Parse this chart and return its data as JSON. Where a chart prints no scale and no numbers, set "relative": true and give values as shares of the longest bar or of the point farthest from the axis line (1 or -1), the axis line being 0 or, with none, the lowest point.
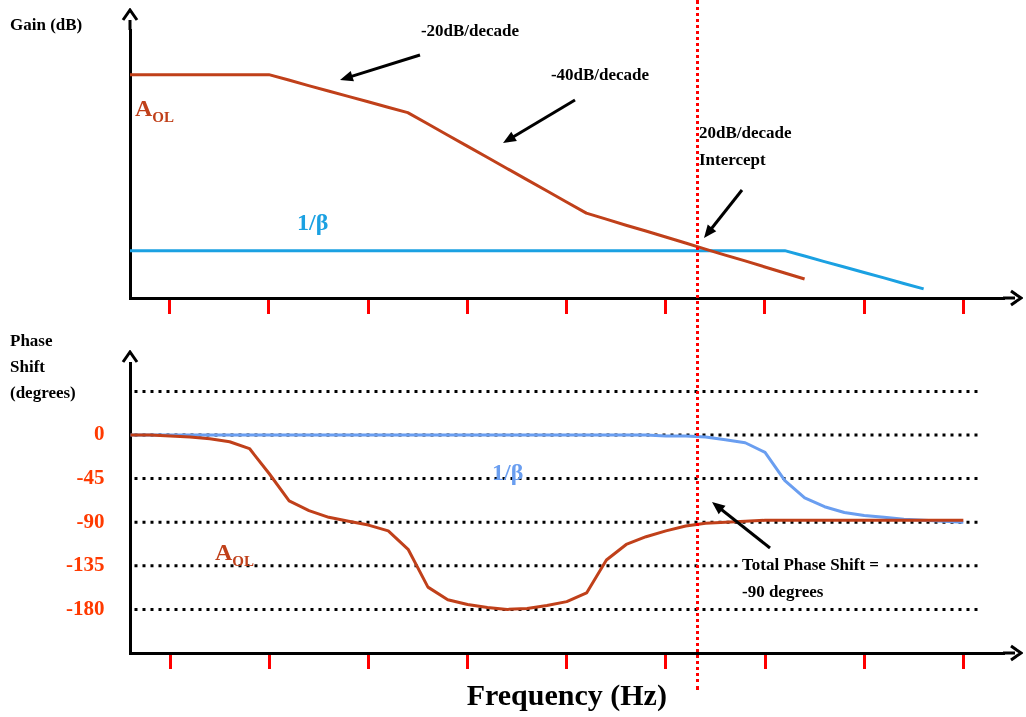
{
  "chart_data": [
    {
      "type": "line",
      "ylabel": "Gain (dB)",
      "relative": true,
      "categories": [
        null,
        null,
        null,
        null,
        null,
        null,
        null,
        null,
        null,
        null,
        null,
        null,
        null,
        null,
        null,
        null,
        null,
        null,
        null,
        null,
        null,
        null,
        null,
        null,
        null,
        null,
        null,
        null,
        null,
        null,
        null,
        null,
        null,
        null,
        null,
        null,
        null,
        null,
        null,
        null,
        null,
        null,
        null,
        null,
        null
      ],
      "tick_labels": false,
      "marker": "none",
      "series": [
        {
          "name": "A$_{OL}$",
          "color": "#c0401a",
          "values": [
            1,
            1,
            1,
            1,
            1,
            1,
            1,
            1,
            0.976,
            0.951,
            0.927,
            0.903,
            0.879,
            0.854,
            0.83,
            0.78,
            0.73,
            0.68,
            0.63,
            0.58,
            0.53,
            0.48,
            0.43,
            0.38,
            0.353,
            0.326,
            0.3,
            0.273,
            0.246,
            0.219,
            0.192,
            0.166,
            0.139,
            0.112,
            0.085,
            null,
            null,
            null,
            null,
            null,
            null,
            null,
            null,
            null,
            null
          ]
        },
        {
          "name": "1/β",
          "color": "#1ba1e2",
          "values": [
            0.212,
            0.212,
            0.212,
            0.212,
            0.212,
            0.212,
            0.212,
            0.212,
            0.212,
            0.212,
            0.212,
            0.212,
            0.212,
            0.212,
            0.212,
            0.212,
            0.212,
            0.212,
            0.212,
            0.212,
            0.212,
            0.212,
            0.212,
            0.212,
            0.212,
            0.212,
            0.212,
            0.212,
            0.212,
            0.212,
            0.212,
            0.212,
            0.212,
            0.212,
            0.188,
            0.163,
            0.139,
            0.114,
            0.09,
            0.065,
            0.041,
            null,
            null,
            null,
            null
          ]
        }
      ],
      "annotations": [
        "-20dB/decade",
        "-40dB/decade",
        "20dB/decade Intercept"
      ]
    },
    {
      "type": "line",
      "ylabel": "Phase Shift (degrees)",
      "xlabel": "Frequency (Hz)",
      "categories": [
        null,
        null,
        null,
        null,
        null,
        null,
        null,
        null,
        null,
        null,
        null,
        null,
        null,
        null,
        null,
        null,
        null,
        null,
        null,
        null,
        null,
        null,
        null,
        null,
        null,
        null,
        null,
        null,
        null,
        null,
        null,
        null,
        null,
        null,
        null,
        null,
        null,
        null,
        null,
        null,
        null,
        null,
        null,
        null,
        null
      ],
      "ylim": [
        -225,
        65
      ],
      "yticks": [
        -180,
        -135,
        -90,
        -45,
        0,
        {
          "value": 45,
          "label": null
        }
      ],
      "tick_labels": "y",
      "grid": "y",
      "marker": "none",
      "series": [
        {
          "name": "A$_{OL}$",
          "color": "#c0401a",
          "values": [
            0,
            0,
            -1,
            -2,
            -4,
            -7,
            -14,
            -40,
            -68,
            -78,
            -85,
            -89,
            -93,
            -99,
            -118,
            -157,
            -170,
            -175,
            -178,
            -180,
            -179,
            -176,
            -172,
            -163,
            -129,
            -113,
            -105,
            -99,
            -94,
            -91,
            -90,
            -89,
            -88,
            -88,
            -88,
            -88,
            -88,
            -88,
            -88,
            -88,
            -88,
            -88,
            -88,
            null,
            null
          ]
        },
        {
          "name": "1/β",
          "color": "#6a9ef0",
          "values": [
            0,
            0,
            0,
            0,
            0,
            0,
            0,
            0,
            0,
            0,
            0,
            0,
            0,
            0,
            0,
            0,
            0,
            0,
            0,
            0,
            0,
            0,
            0,
            0,
            0,
            0,
            0,
            -1,
            -1,
            -2,
            -5,
            -8,
            -18,
            -47,
            -65,
            -74,
            -80,
            -83,
            -85,
            -87,
            -88,
            -89,
            -90,
            null,
            null
          ]
        }
      ],
      "annotations": [
        "Total Phase Shift = -90 degrees"
      ]
    }
  ]
}
